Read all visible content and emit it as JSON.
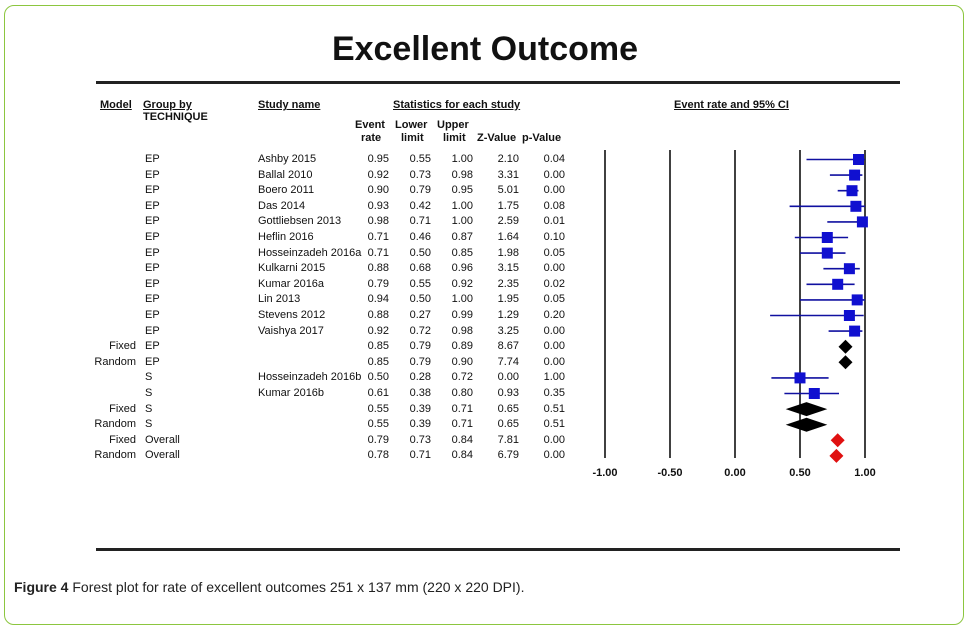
{
  "chart_data": {
    "type": "forest",
    "title": "Excellent Outcome",
    "headers": {
      "model": "Model",
      "group_by": "Group by",
      "group_by_sub": "TECHNIQUE",
      "study_name": "Study name",
      "statistics": "Statistics for each study",
      "plot": "Event rate and 95% CI",
      "event_rate_1": "Event",
      "event_rate_2": "rate",
      "lower_1": "Lower",
      "lower_2": "limit",
      "upper_1": "Upper",
      "upper_2": "limit",
      "zvalue": "Z-Value",
      "pvalue": "p-Value"
    },
    "rows": [
      {
        "model": "",
        "group": "EP",
        "study": "Ashby 2015",
        "rate": "0.95",
        "lower": "0.55",
        "upper": "1.00",
        "z": "2.10",
        "p": "0.04",
        "kind": "study"
      },
      {
        "model": "",
        "group": "EP",
        "study": "Ballal 2010",
        "rate": "0.92",
        "lower": "0.73",
        "upper": "0.98",
        "z": "3.31",
        "p": "0.00",
        "kind": "study"
      },
      {
        "model": "",
        "group": "EP",
        "study": "Boero 2011",
        "rate": "0.90",
        "lower": "0.79",
        "upper": "0.95",
        "z": "5.01",
        "p": "0.00",
        "kind": "study"
      },
      {
        "model": "",
        "group": "EP",
        "study": "Das 2014",
        "rate": "0.93",
        "lower": "0.42",
        "upper": "1.00",
        "z": "1.75",
        "p": "0.08",
        "kind": "study"
      },
      {
        "model": "",
        "group": "EP",
        "study": "Gottliebsen 2013",
        "rate": "0.98",
        "lower": "0.71",
        "upper": "1.00",
        "z": "2.59",
        "p": "0.01",
        "kind": "study"
      },
      {
        "model": "",
        "group": "EP",
        "study": "Heflin 2016",
        "rate": "0.71",
        "lower": "0.46",
        "upper": "0.87",
        "z": "1.64",
        "p": "0.10",
        "kind": "study"
      },
      {
        "model": "",
        "group": "EP",
        "study": "Hosseinzadeh 2016a",
        "rate": "0.71",
        "lower": "0.50",
        "upper": "0.85",
        "z": "1.98",
        "p": "0.05",
        "kind": "study"
      },
      {
        "model": "",
        "group": "EP",
        "study": "Kulkarni 2015",
        "rate": "0.88",
        "lower": "0.68",
        "upper": "0.96",
        "z": "3.15",
        "p": "0.00",
        "kind": "study"
      },
      {
        "model": "",
        "group": "EP",
        "study": "Kumar 2016a",
        "rate": "0.79",
        "lower": "0.55",
        "upper": "0.92",
        "z": "2.35",
        "p": "0.02",
        "kind": "study"
      },
      {
        "model": "",
        "group": "EP",
        "study": "Lin 2013",
        "rate": "0.94",
        "lower": "0.50",
        "upper": "1.00",
        "z": "1.95",
        "p": "0.05",
        "kind": "study"
      },
      {
        "model": "",
        "group": "EP",
        "study": "Stevens 2012",
        "rate": "0.88",
        "lower": "0.27",
        "upper": "0.99",
        "z": "1.29",
        "p": "0.20",
        "kind": "study"
      },
      {
        "model": "",
        "group": "EP",
        "study": "Vaishya 2017",
        "rate": "0.92",
        "lower": "0.72",
        "upper": "0.98",
        "z": "3.25",
        "p": "0.00",
        "kind": "study"
      },
      {
        "model": "Fixed",
        "group": "EP",
        "study": "",
        "rate": "0.85",
        "lower": "0.79",
        "upper": "0.89",
        "z": "8.67",
        "p": "0.00",
        "kind": "pooled-small"
      },
      {
        "model": "Random",
        "group": "EP",
        "study": "",
        "rate": "0.85",
        "lower": "0.79",
        "upper": "0.90",
        "z": "7.74",
        "p": "0.00",
        "kind": "pooled-small"
      },
      {
        "model": "",
        "group": "S",
        "study": "Hosseinzadeh 2016b",
        "rate": "0.50",
        "lower": "0.28",
        "upper": "0.72",
        "z": "0.00",
        "p": "1.00",
        "kind": "study"
      },
      {
        "model": "",
        "group": "S",
        "study": "Kumar 2016b",
        "rate": "0.61",
        "lower": "0.38",
        "upper": "0.80",
        "z": "0.93",
        "p": "0.35",
        "kind": "study"
      },
      {
        "model": "Fixed",
        "group": "S",
        "study": "",
        "rate": "0.55",
        "lower": "0.39",
        "upper": "0.71",
        "z": "0.65",
        "p": "0.51",
        "kind": "pooled"
      },
      {
        "model": "Random",
        "group": "S",
        "study": "",
        "rate": "0.55",
        "lower": "0.39",
        "upper": "0.71",
        "z": "0.65",
        "p": "0.51",
        "kind": "pooled"
      },
      {
        "model": "Fixed",
        "group": "Overall",
        "study": "",
        "rate": "0.79",
        "lower": "0.73",
        "upper": "0.84",
        "z": "7.81",
        "p": "0.00",
        "kind": "overall"
      },
      {
        "model": "Random",
        "group": "Overall",
        "study": "",
        "rate": "0.78",
        "lower": "0.71",
        "upper": "0.84",
        "z": "6.79",
        "p": "0.00",
        "kind": "overall"
      }
    ],
    "xaxis": {
      "ticks": [
        "-1.00",
        "-0.50",
        "0.00",
        "0.50",
        "1.00"
      ],
      "tick_values": [
        -1.0,
        -0.5,
        0.0,
        0.5,
        1.0
      ],
      "range": [
        -1.0,
        1.0
      ]
    },
    "colors": {
      "study": "#1010d0",
      "ci_line": "#1010a0",
      "pooled": "#000000",
      "overall": "#e01010"
    }
  },
  "caption": {
    "label": "Figure 4",
    "text": " Forest plot for rate of excellent outcomes 251 x 137 mm (220 x 220 DPI)."
  }
}
